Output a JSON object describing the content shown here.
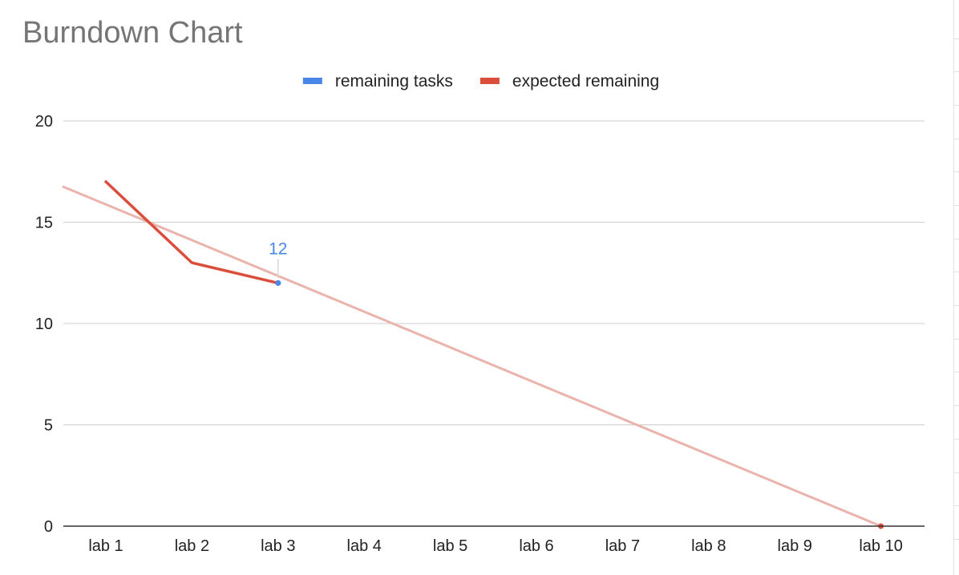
{
  "chart_data": {
    "type": "line",
    "title": "Burndown Chart",
    "xlabel": "",
    "ylabel": "",
    "categories": [
      "lab 1",
      "lab 2",
      "lab 3",
      "lab 4",
      "lab 5",
      "lab 6",
      "lab 7",
      "lab 8",
      "lab 9",
      "lab 10"
    ],
    "ylim": [
      0,
      20
    ],
    "yticks": [
      0,
      5,
      10,
      15,
      20
    ],
    "grid": true,
    "legend": "top",
    "series": [
      {
        "name": "remaining tasks",
        "color": "#4a86e8",
        "values": [
          null,
          null,
          12,
          null,
          null,
          null,
          null,
          null,
          null,
          null
        ]
      },
      {
        "name": "expected remaining",
        "color": "#dc4e3c",
        "values": [
          17,
          13,
          12,
          null,
          null,
          null,
          null,
          null,
          null,
          0
        ]
      }
    ],
    "trendline": {
      "color": "#eab4ad",
      "from_value": 16.75,
      "to_value": 0
    },
    "annotations": [
      {
        "series": "remaining tasks",
        "category": "lab 3",
        "text": "12"
      }
    ]
  }
}
